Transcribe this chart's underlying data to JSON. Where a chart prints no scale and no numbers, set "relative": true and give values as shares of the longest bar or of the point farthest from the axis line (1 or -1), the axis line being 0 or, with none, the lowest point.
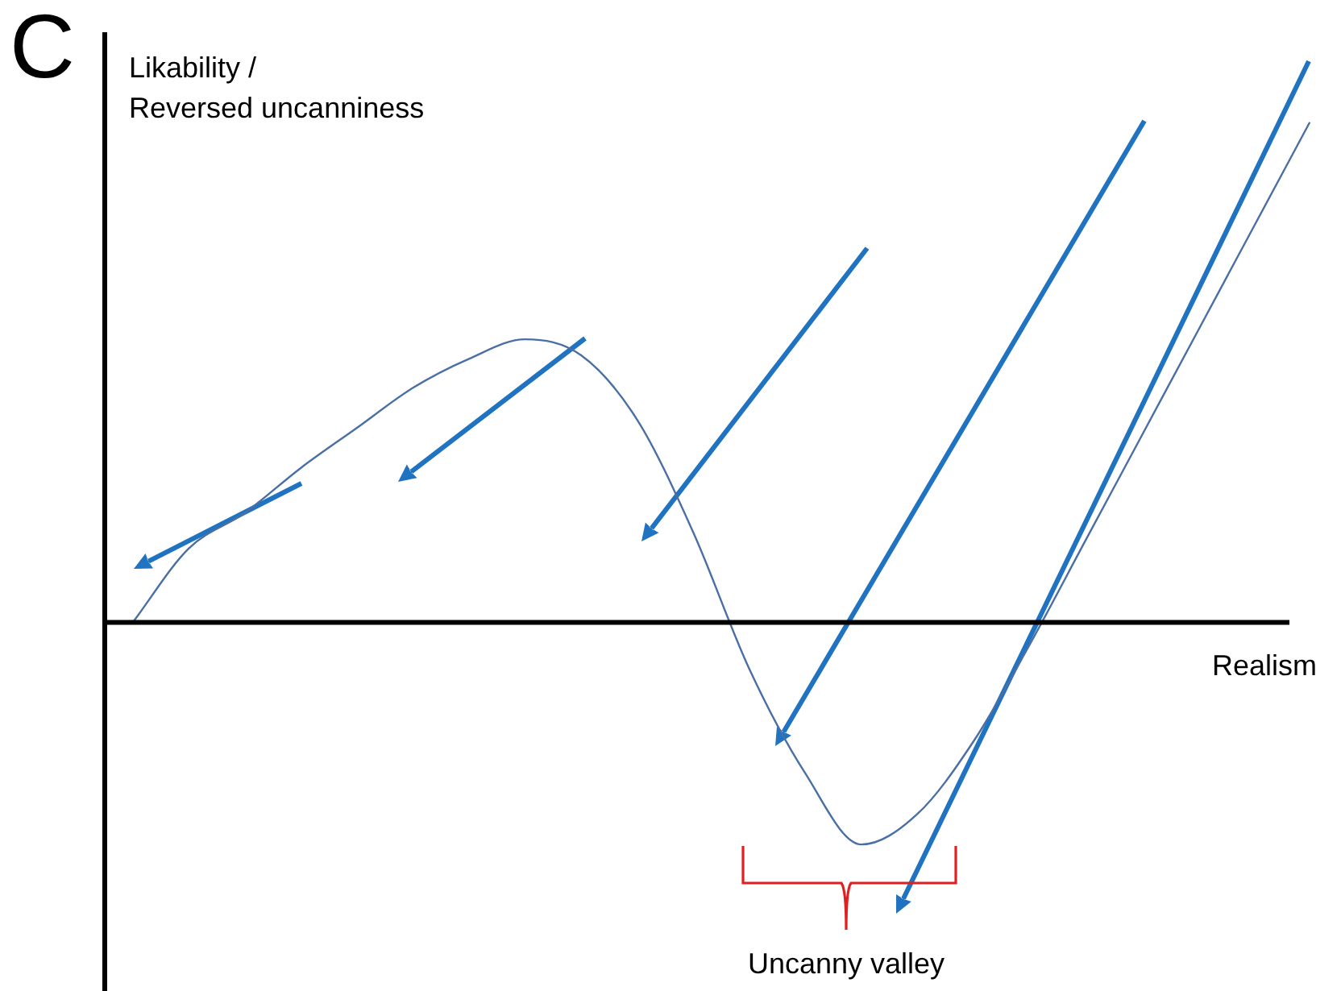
{
  "chart_data": {
    "type": "line",
    "xlabel": "Realism",
    "ylabel": "Likability / Reversed uncanniness",
    "relative": true,
    "marker": "none",
    "line_style": "solid",
    "categories": [
      null,
      null,
      null,
      null,
      null,
      null,
      null,
      null,
      null,
      null,
      null,
      null,
      null,
      null,
      null,
      null,
      null,
      null,
      null,
      null,
      null,
      null
    ],
    "series": [
      {
        "color": "#4a6fa5",
        "values": [
          0,
          0.148,
          0.219,
          0.309,
          0.389,
          0.469,
          0.527,
          0.566,
          0.534,
          0.405,
          0.18,
          -0.093,
          -0.302,
          -0.444,
          -0.383,
          -0.238,
          -0.045,
          0.164,
          0.373,
          0.582,
          0.791,
          1
        ]
      }
    ],
    "annotations": [
      "C",
      "Uncanny valley"
    ]
  }
}
